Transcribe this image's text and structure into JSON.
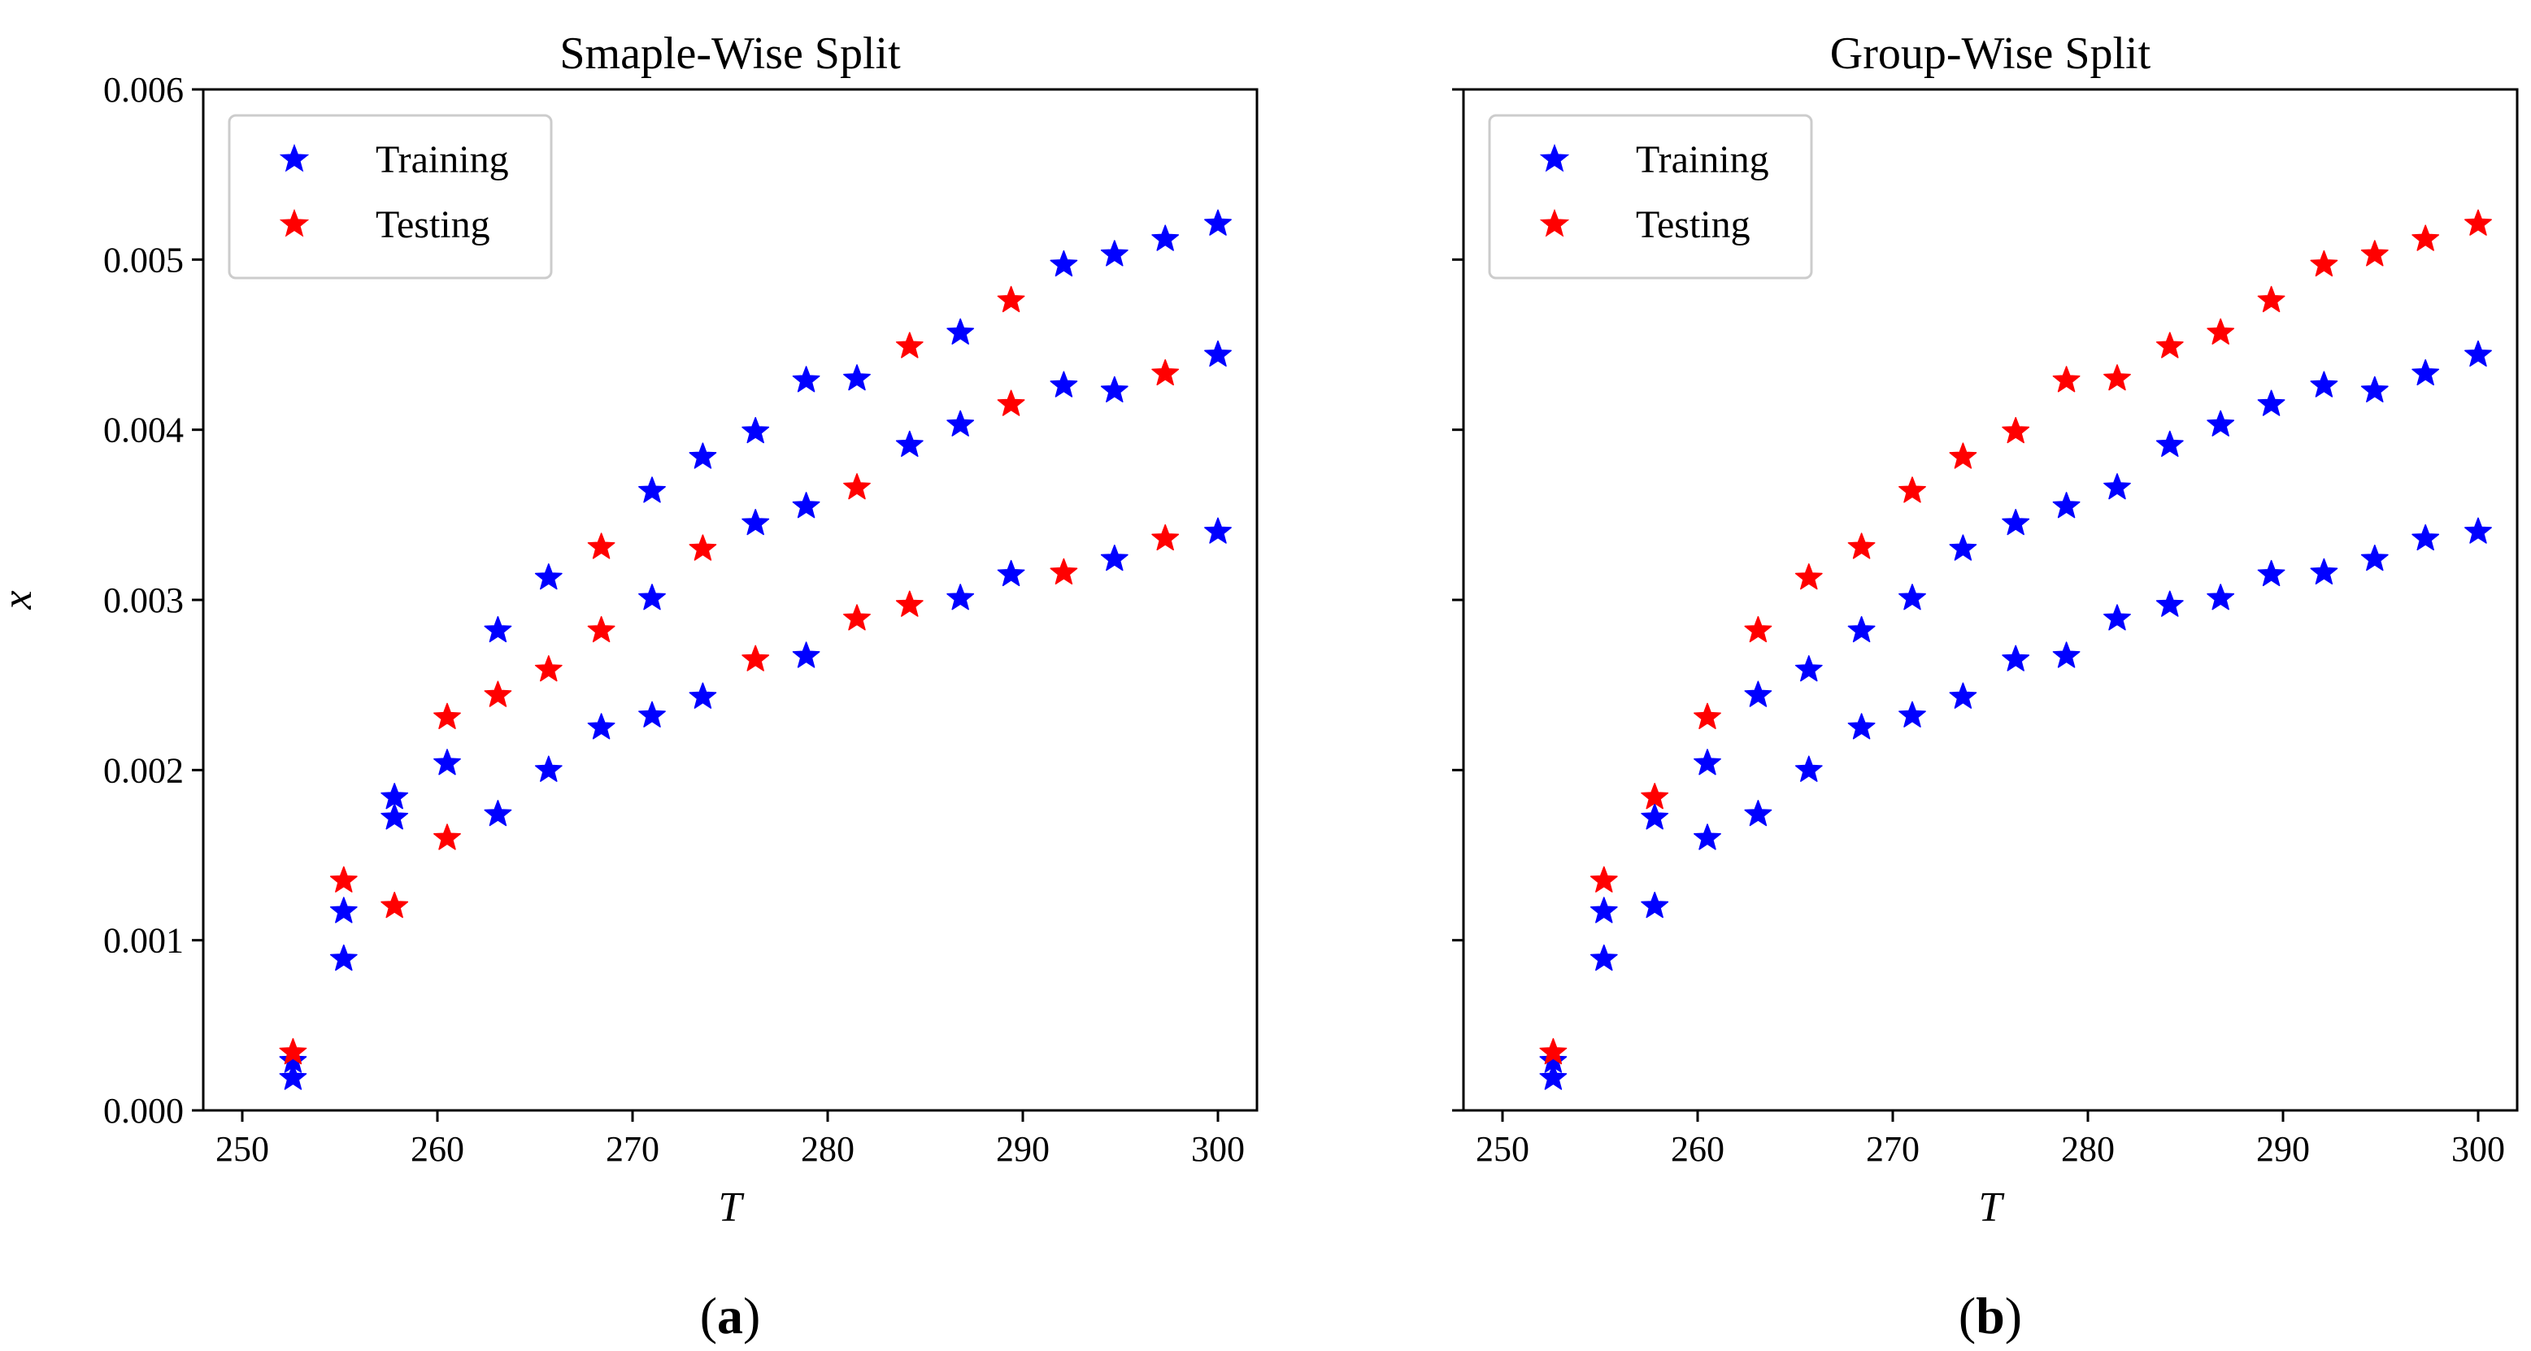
{
  "colors": {
    "training": "#0000ff",
    "testing": "#ff0000",
    "axis": "#000000",
    "background": "#ffffff"
  },
  "chart_data": [
    {
      "type": "scatter",
      "title": "Smaple-Wise Split",
      "caption": {
        "open": "(",
        "letter": "a",
        "close": ")"
      },
      "xlabel": "T",
      "ylabel": "x",
      "xlim": [
        248,
        302
      ],
      "ylim": [
        0,
        0.006
      ],
      "xticks": [
        250,
        260,
        270,
        280,
        290,
        300
      ],
      "xtick_labels": [
        "250",
        "260",
        "270",
        "280",
        "290",
        "300"
      ],
      "yticks": [
        0,
        0.001,
        0.002,
        0.003,
        0.004,
        0.005,
        0.006
      ],
      "ytick_labels": [
        "0.000",
        "0.001",
        "0.002",
        "0.003",
        "0.004",
        "0.005",
        "0.006"
      ],
      "grid": false,
      "legend": {
        "position": "top-left",
        "entries": [
          "Training",
          "Testing"
        ]
      },
      "marker": "star",
      "series": [
        {
          "name": "Training",
          "color": "#0000ff",
          "points": [
            [
              252.6,
              0.00019
            ],
            [
              252.6,
              0.00029
            ],
            [
              255.2,
              0.00089
            ],
            [
              255.2,
              0.00117
            ],
            [
              257.8,
              0.00172
            ],
            [
              257.8,
              0.00184
            ],
            [
              260.5,
              0.00204
            ],
            [
              263.1,
              0.00174
            ],
            [
              263.1,
              0.00282
            ],
            [
              265.7,
              0.002
            ],
            [
              265.7,
              0.00313
            ],
            [
              268.4,
              0.00225
            ],
            [
              271.0,
              0.00232
            ],
            [
              271.0,
              0.00301
            ],
            [
              271.0,
              0.00364
            ],
            [
              273.6,
              0.00243
            ],
            [
              273.6,
              0.00384
            ],
            [
              276.3,
              0.00345
            ],
            [
              276.3,
              0.00399
            ],
            [
              278.9,
              0.00267
            ],
            [
              278.9,
              0.00355
            ],
            [
              278.9,
              0.00429
            ],
            [
              281.5,
              0.0043
            ],
            [
              284.2,
              0.00391
            ],
            [
              286.8,
              0.00301
            ],
            [
              286.8,
              0.00403
            ],
            [
              286.8,
              0.00457
            ],
            [
              289.4,
              0.00315
            ],
            [
              292.1,
              0.00426
            ],
            [
              292.1,
              0.00497
            ],
            [
              294.7,
              0.00324
            ],
            [
              294.7,
              0.00423
            ],
            [
              294.7,
              0.00503
            ],
            [
              297.3,
              0.00512
            ],
            [
              300.0,
              0.0034
            ],
            [
              300.0,
              0.00444
            ],
            [
              300.0,
              0.00521
            ]
          ]
        },
        {
          "name": "Testing",
          "color": "#ff0000",
          "points": [
            [
              252.6,
              0.00034
            ],
            [
              255.2,
              0.00135
            ],
            [
              257.8,
              0.0012
            ],
            [
              260.5,
              0.0016
            ],
            [
              260.5,
              0.00231
            ],
            [
              263.1,
              0.00244
            ],
            [
              265.7,
              0.00259
            ],
            [
              268.4,
              0.00282
            ],
            [
              268.4,
              0.00331
            ],
            [
              273.6,
              0.0033
            ],
            [
              276.3,
              0.00265
            ],
            [
              281.5,
              0.00289
            ],
            [
              281.5,
              0.00366
            ],
            [
              284.2,
              0.00297
            ],
            [
              284.2,
              0.00449
            ],
            [
              289.4,
              0.00415
            ],
            [
              289.4,
              0.00476
            ],
            [
              292.1,
              0.00316
            ],
            [
              297.3,
              0.00336
            ],
            [
              297.3,
              0.00433
            ]
          ]
        }
      ]
    },
    {
      "type": "scatter",
      "title": "Group-Wise Split",
      "caption": {
        "open": "(",
        "letter": "b",
        "close": ")"
      },
      "xlabel": "T",
      "ylabel": "",
      "xlim": [
        248,
        302
      ],
      "ylim": [
        0,
        0.006
      ],
      "xticks": [
        250,
        260,
        270,
        280,
        290,
        300
      ],
      "xtick_labels": [
        "250",
        "260",
        "270",
        "280",
        "290",
        "300"
      ],
      "yticks": [
        0,
        0.001,
        0.002,
        0.003,
        0.004,
        0.005,
        0.006
      ],
      "ytick_labels": [],
      "grid": false,
      "legend": {
        "position": "top-left",
        "entries": [
          "Training",
          "Testing"
        ]
      },
      "marker": "star",
      "series": [
        {
          "name": "Training",
          "color": "#0000ff",
          "points": [
            [
              252.6,
              0.00019
            ],
            [
              252.6,
              0.00029
            ],
            [
              255.2,
              0.00089
            ],
            [
              255.2,
              0.00117
            ],
            [
              257.8,
              0.0012
            ],
            [
              257.8,
              0.00172
            ],
            [
              260.5,
              0.0016
            ],
            [
              260.5,
              0.00204
            ],
            [
              263.1,
              0.00174
            ],
            [
              263.1,
              0.00244
            ],
            [
              265.7,
              0.002
            ],
            [
              265.7,
              0.00259
            ],
            [
              268.4,
              0.00225
            ],
            [
              268.4,
              0.00282
            ],
            [
              271.0,
              0.00232
            ],
            [
              271.0,
              0.00301
            ],
            [
              273.6,
              0.00243
            ],
            [
              273.6,
              0.0033
            ],
            [
              276.3,
              0.00265
            ],
            [
              276.3,
              0.00345
            ],
            [
              278.9,
              0.00267
            ],
            [
              278.9,
              0.00355
            ],
            [
              281.5,
              0.00289
            ],
            [
              281.5,
              0.00366
            ],
            [
              284.2,
              0.00297
            ],
            [
              284.2,
              0.00391
            ],
            [
              286.8,
              0.00301
            ],
            [
              286.8,
              0.00403
            ],
            [
              289.4,
              0.00315
            ],
            [
              289.4,
              0.00415
            ],
            [
              292.1,
              0.00316
            ],
            [
              292.1,
              0.00426
            ],
            [
              294.7,
              0.00324
            ],
            [
              294.7,
              0.00423
            ],
            [
              297.3,
              0.00336
            ],
            [
              297.3,
              0.00433
            ],
            [
              300.0,
              0.0034
            ],
            [
              300.0,
              0.00444
            ]
          ]
        },
        {
          "name": "Testing",
          "color": "#ff0000",
          "points": [
            [
              252.6,
              0.00034
            ],
            [
              255.2,
              0.00135
            ],
            [
              257.8,
              0.00184
            ],
            [
              260.5,
              0.00231
            ],
            [
              263.1,
              0.00282
            ],
            [
              265.7,
              0.00313
            ],
            [
              268.4,
              0.00331
            ],
            [
              271.0,
              0.00364
            ],
            [
              273.6,
              0.00384
            ],
            [
              276.3,
              0.00399
            ],
            [
              278.9,
              0.00429
            ],
            [
              281.5,
              0.0043
            ],
            [
              284.2,
              0.00449
            ],
            [
              286.8,
              0.00457
            ],
            [
              289.4,
              0.00476
            ],
            [
              292.1,
              0.00497
            ],
            [
              294.7,
              0.00503
            ],
            [
              297.3,
              0.00512
            ],
            [
              300.0,
              0.00521
            ]
          ]
        }
      ]
    }
  ]
}
